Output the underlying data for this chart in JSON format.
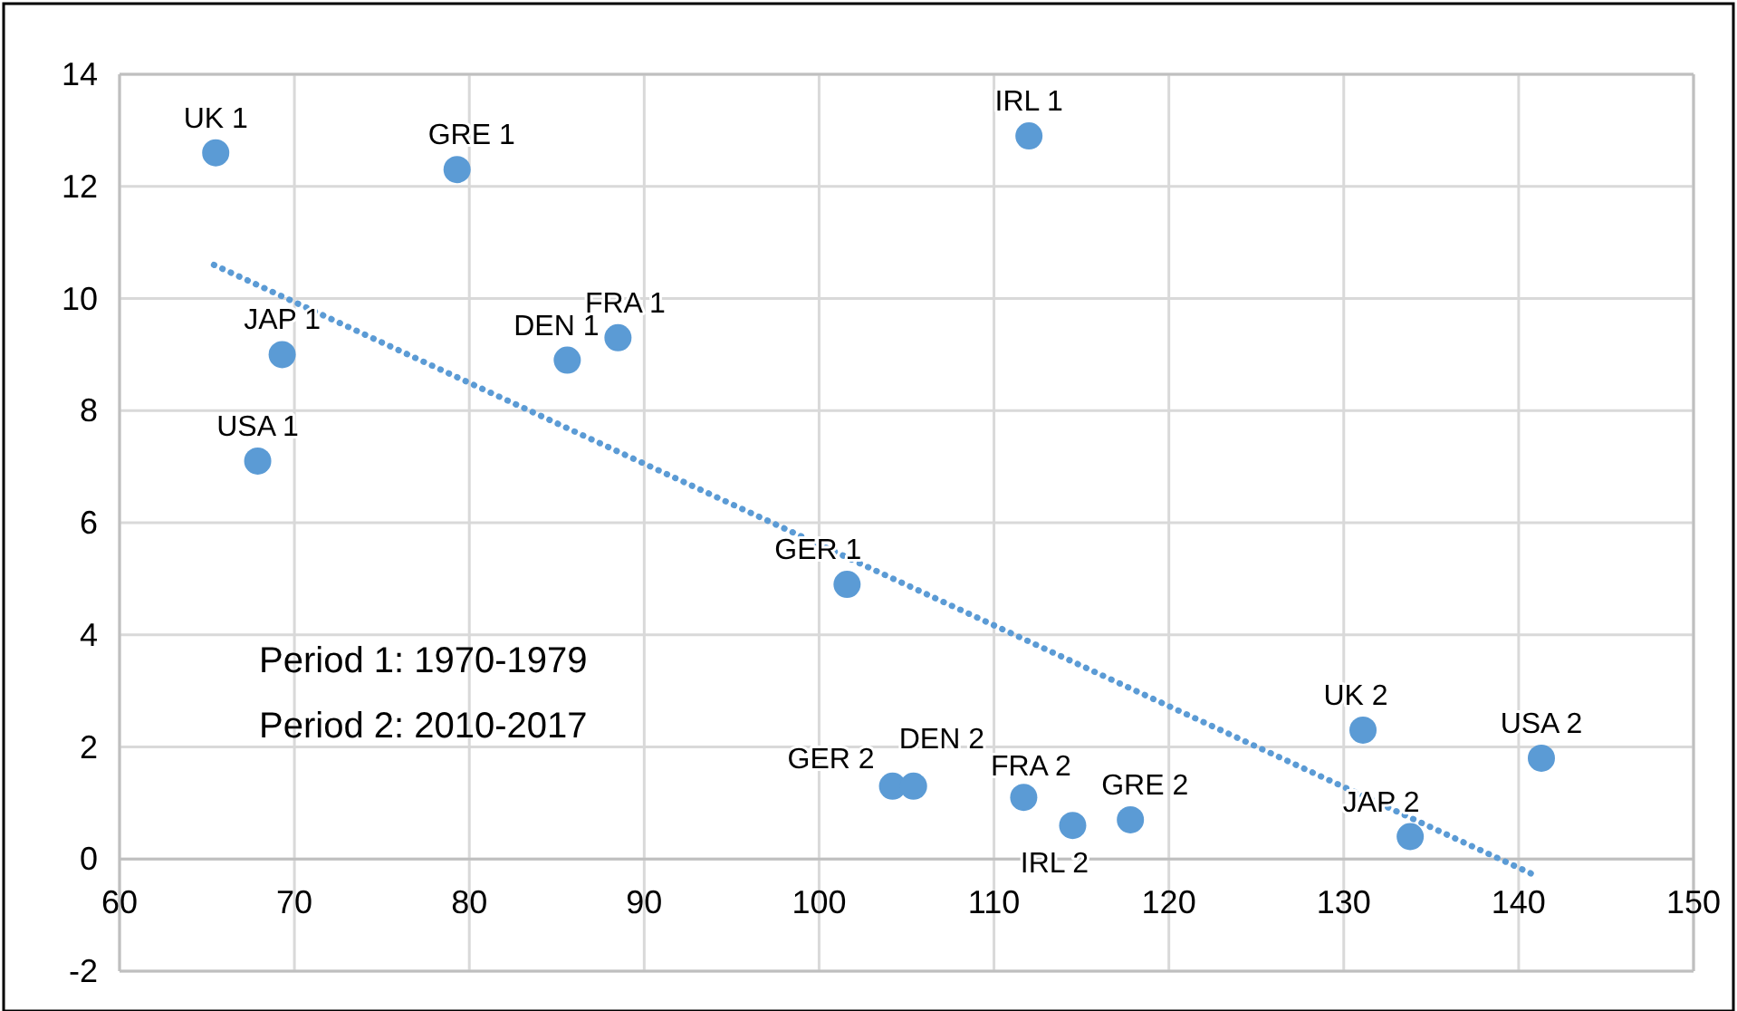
{
  "chart_data": {
    "type": "scatter",
    "xlim": [
      60,
      150
    ],
    "ylim": [
      -2,
      14
    ],
    "xticks": [
      60,
      70,
      80,
      90,
      100,
      110,
      120,
      130,
      140,
      150
    ],
    "yticks": [
      -2,
      0,
      2,
      4,
      6,
      8,
      10,
      12,
      14
    ],
    "grid": true,
    "marker": "circle",
    "series": [
      {
        "type": "scatter",
        "color": "#5b9bd5",
        "x": [
          65.5,
          79.3,
          112.0,
          69.3,
          67.9,
          85.6,
          88.5,
          101.6,
          104.2,
          105.4,
          111.7,
          114.5,
          117.8,
          131.1,
          133.8,
          141.3
        ],
        "values": [
          12.6,
          12.3,
          12.9,
          9.0,
          7.1,
          8.9,
          9.3,
          4.9,
          1.3,
          1.3,
          1.1,
          0.6,
          0.7,
          2.3,
          0.4,
          1.8
        ]
      },
      {
        "type": "line",
        "color": "#5b9bd5",
        "line_style": "dotted",
        "marker": "none",
        "x": [
          65.4,
          141.0
        ],
        "values": [
          10.6,
          -0.3
        ]
      }
    ],
    "annotations": [
      {
        "text": "UK 1",
        "x": 65.5,
        "y": 12.6
      },
      {
        "text": "GRE 1",
        "x": 79.3,
        "y": 12.3
      },
      {
        "text": "IRL 1",
        "x": 112.0,
        "y": 12.9
      },
      {
        "text": "JAP 1",
        "x": 69.3,
        "y": 9.0
      },
      {
        "text": "USA 1",
        "x": 67.9,
        "y": 7.1
      },
      {
        "text": "DEN 1",
        "x": 85.6,
        "y": 8.9
      },
      {
        "text": "FRA 1",
        "x": 88.5,
        "y": 9.3
      },
      {
        "text": "GER 1",
        "x": 101.6,
        "y": 4.9
      },
      {
        "text": "GER 2",
        "x": 104.2,
        "y": 1.3
      },
      {
        "text": "DEN 2",
        "x": 105.4,
        "y": 1.3
      },
      {
        "text": "FRA 2",
        "x": 111.7,
        "y": 1.1
      },
      {
        "text": "IRL 2",
        "x": 114.5,
        "y": 0.6
      },
      {
        "text": "GRE 2",
        "x": 117.8,
        "y": 0.7
      },
      {
        "text": "UK 2",
        "x": 131.1,
        "y": 2.3
      },
      {
        "text": "JAP 2",
        "x": 133.8,
        "y": 0.4
      },
      {
        "text": "USA 2",
        "x": 141.3,
        "y": 1.8
      },
      "Period 1: 1970-1979",
      "Period 2: 2010-2017"
    ]
  }
}
